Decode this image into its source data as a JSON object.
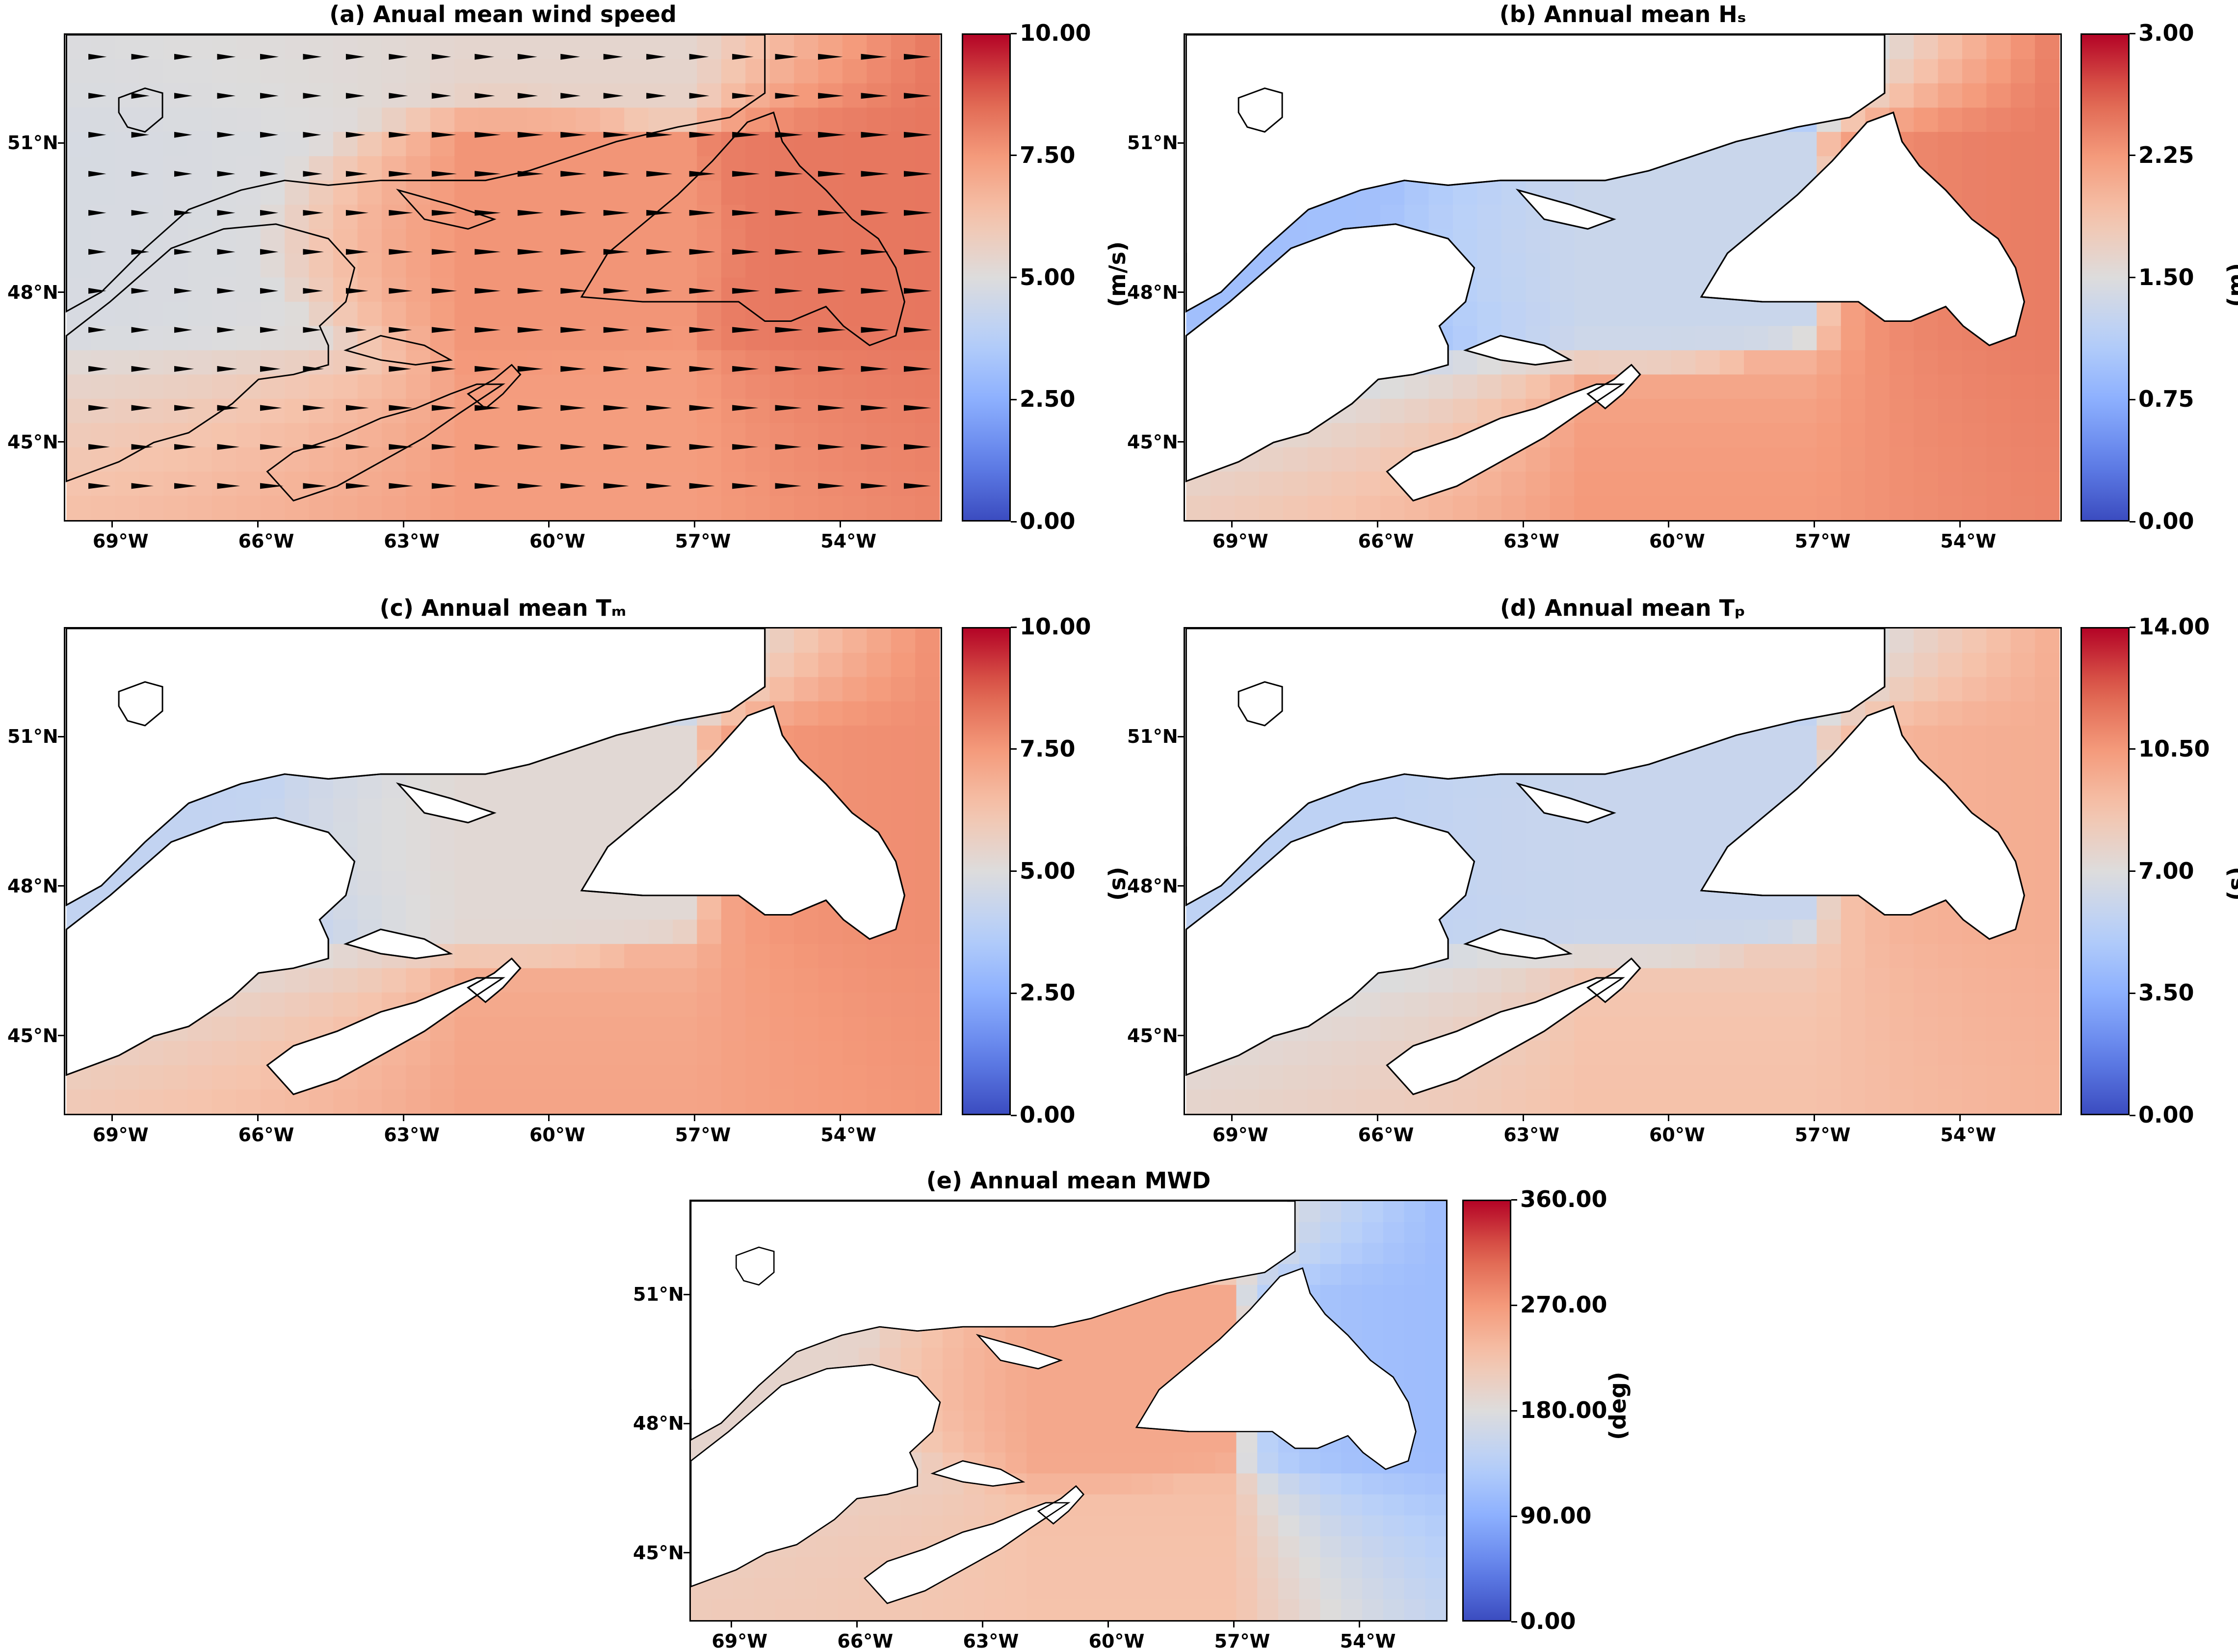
{
  "colormap": {
    "name": "coolwarm",
    "low": "#3b4cc0",
    "mid": "#dddcdc",
    "high": "#b40426"
  },
  "lon_ticks": [
    "69°W",
    "66°W",
    "63°W",
    "60°W",
    "57°W",
    "54°W"
  ],
  "lat_ticks": [
    "51°N",
    "48°N",
    "45°N"
  ],
  "panels": [
    {
      "title": "(a) Anual mean wind speed",
      "unit": "(m/s)",
      "cbar_ticks": [
        "0.00",
        "2.50",
        "5.00",
        "7.50",
        "10.00"
      ],
      "cbar_range": [
        0,
        10
      ],
      "land_masked": false,
      "has_vectors": true,
      "vector_direction": "eastward",
      "field": {
        "west": 4.6,
        "gulf": 7.6,
        "east_open": 8.3,
        "south": 7.4,
        "north": 5.2
      }
    },
    {
      "title": "(b) Annual mean Hₛ",
      "unit": "(m)",
      "cbar_ticks": [
        "0.00",
        "0.75",
        "1.50",
        "2.25",
        "3.00"
      ],
      "cbar_range": [
        0,
        3
      ],
      "land_masked": true,
      "has_vectors": false,
      "field": {
        "west": 0.9,
        "gulf": 1.3,
        "east_open": 2.5,
        "south": 2.3,
        "north": 1.0
      }
    },
    {
      "title": "(c) Annual mean Tₘ",
      "unit": "(s)",
      "cbar_ticks": [
        "0.00",
        "2.50",
        "5.00",
        "7.50",
        "10.00"
      ],
      "cbar_range": [
        0,
        10
      ],
      "land_masked": true,
      "has_vectors": false,
      "field": {
        "west": 4.0,
        "gulf": 5.2,
        "east_open": 7.9,
        "south": 7.3,
        "north": 4.2
      }
    },
    {
      "title": "(d) Annual mean Tₚ",
      "unit": "(s)",
      "cbar_ticks": [
        "0.00",
        "3.50",
        "7.00",
        "10.50",
        "14.00"
      ],
      "cbar_range": [
        0,
        14
      ],
      "land_masked": true,
      "has_vectors": false,
      "field": {
        "west": 5.5,
        "gulf": 6.0,
        "east_open": 9.9,
        "south": 9.0,
        "north": 5.6
      }
    },
    {
      "title": "(e) Annual mean MWD",
      "unit": "(deg)",
      "cbar_ticks": [
        "0.00",
        "90.00",
        "180.00",
        "270.00",
        "360.00"
      ],
      "cbar_range": [
        0,
        360
      ],
      "land_masked": true,
      "has_vectors": false,
      "field": {
        "west": 190,
        "gulf": 255,
        "east_open": 100,
        "south": 225,
        "north": 200
      }
    }
  ]
}
